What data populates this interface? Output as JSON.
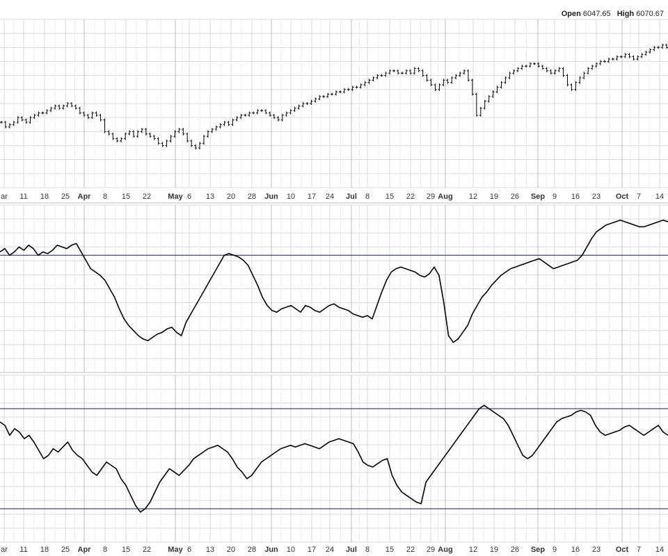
{
  "header": {
    "open_label": "Open",
    "open_value": "6047.65",
    "high_label": "High",
    "high_value": "6070.67"
  },
  "colors": {
    "grid": "#d9d9d9",
    "grid_major": "#bcbcbc",
    "line": "#000000",
    "reference_line": "#1a1a4e",
    "axis_text": "#333333"
  },
  "chart_data": [
    {
      "type": "ohlc",
      "panel": "price",
      "x_tick_labels": [
        "ar",
        "11",
        "18",
        "25",
        "Apr",
        "8",
        "15",
        "22",
        "May",
        "6",
        "13",
        "20",
        "28",
        "Jun",
        "10",
        "17",
        "24",
        "Jul",
        "8",
        "15",
        "22",
        "29",
        "Aug",
        "12",
        "19",
        "26",
        "Sep",
        "9",
        "16",
        "23",
        "Oct",
        "7",
        "14"
      ],
      "bold_tick_labels": [
        "Apr",
        "May",
        "Jun",
        "Jul",
        "Aug",
        "Sep",
        "Oct"
      ],
      "y_range": [
        0,
        100
      ],
      "closes": [
        82,
        80,
        81,
        82,
        84,
        83,
        82,
        84,
        85,
        86,
        86,
        87,
        88,
        89,
        88,
        89,
        90,
        89,
        88,
        86,
        85,
        84,
        86,
        85,
        83,
        78,
        77,
        75,
        74,
        75,
        77,
        78,
        76,
        78,
        79,
        77,
        76,
        75,
        73,
        72,
        74,
        76,
        78,
        79,
        77,
        74,
        72,
        71,
        73,
        76,
        78,
        79,
        80,
        81,
        82,
        81,
        83,
        84,
        85,
        85,
        86,
        86,
        87,
        87,
        86,
        85,
        84,
        83,
        85,
        86,
        87,
        88,
        89,
        90,
        90,
        91,
        92,
        93,
        93,
        94,
        94,
        95,
        95,
        96,
        96,
        97,
        97,
        98,
        99,
        100,
        101,
        102,
        102,
        103,
        104,
        104,
        103,
        103,
        104,
        103,
        105,
        104,
        102,
        100,
        98,
        96,
        98,
        100,
        99,
        101,
        102,
        103,
        104,
        100,
        94,
        85,
        88,
        91,
        93,
        95,
        97,
        99,
        101,
        103,
        104,
        105,
        106,
        106,
        107,
        107,
        106,
        105,
        104,
        103,
        104,
        105,
        102,
        98,
        96,
        99,
        101,
        103,
        105,
        106,
        107,
        108,
        108,
        109,
        109,
        110,
        110,
        111,
        110,
        109,
        110,
        111,
        112,
        113,
        114,
        114,
        115,
        114
      ]
    },
    {
      "type": "line",
      "panel": "indicator-1",
      "reference_levels": [
        70
      ],
      "y_range": [
        0,
        100
      ],
      "values": [
        72,
        74,
        70,
        72,
        75,
        73,
        76,
        74,
        70,
        72,
        71,
        73,
        76,
        75,
        74,
        76,
        77,
        72,
        67,
        62,
        60,
        58,
        55,
        50,
        45,
        38,
        32,
        28,
        25,
        22,
        20,
        19,
        21,
        23,
        24,
        26,
        27,
        24,
        22,
        30,
        35,
        40,
        45,
        50,
        55,
        60,
        65,
        70,
        71,
        70,
        69,
        67,
        64,
        58,
        52,
        45,
        40,
        37,
        36,
        38,
        39,
        40,
        38,
        36,
        40,
        39,
        37,
        36,
        38,
        40,
        41,
        39,
        38,
        37,
        35,
        34,
        33,
        34,
        32,
        40,
        48,
        55,
        60,
        62,
        63,
        62,
        61,
        60,
        58,
        57,
        59,
        63,
        58,
        42,
        22,
        18,
        20,
        24,
        28,
        35,
        40,
        45,
        48,
        52,
        55,
        58,
        60,
        62,
        63,
        64,
        65,
        66,
        67,
        68,
        66,
        64,
        62,
        63,
        64,
        65,
        66,
        67,
        70,
        75,
        80,
        84,
        86,
        88,
        89,
        90,
        91,
        90,
        89,
        88,
        87,
        87,
        88,
        89,
        90,
        91,
        90
      ]
    },
    {
      "type": "line",
      "panel": "indicator-2",
      "reference_levels": [
        80,
        20
      ],
      "y_range": [
        0,
        100
      ],
      "values": [
        72,
        70,
        64,
        68,
        66,
        62,
        64,
        60,
        55,
        50,
        52,
        56,
        54,
        57,
        60,
        55,
        52,
        50,
        46,
        42,
        40,
        44,
        48,
        46,
        44,
        38,
        34,
        28,
        22,
        18,
        20,
        24,
        30,
        36,
        40,
        44,
        42,
        40,
        43,
        46,
        50,
        52,
        54,
        56,
        57,
        58,
        56,
        54,
        50,
        45,
        42,
        38,
        40,
        44,
        48,
        50,
        52,
        54,
        56,
        57,
        58,
        57,
        58,
        59,
        58,
        57,
        56,
        58,
        60,
        61,
        62,
        61,
        60,
        59,
        54,
        48,
        46,
        45,
        47,
        49,
        50,
        40,
        34,
        30,
        28,
        26,
        24,
        23,
        36,
        40,
        44,
        48,
        52,
        56,
        60,
        64,
        68,
        72,
        76,
        80,
        82,
        80,
        78,
        76,
        74,
        70,
        64,
        58,
        52,
        50,
        52,
        56,
        60,
        64,
        68,
        72,
        74,
        75,
        76,
        78,
        79,
        78,
        76,
        70,
        66,
        64,
        65,
        66,
        67,
        69,
        70,
        68,
        66,
        64,
        66,
        68,
        70,
        66,
        64
      ]
    }
  ]
}
